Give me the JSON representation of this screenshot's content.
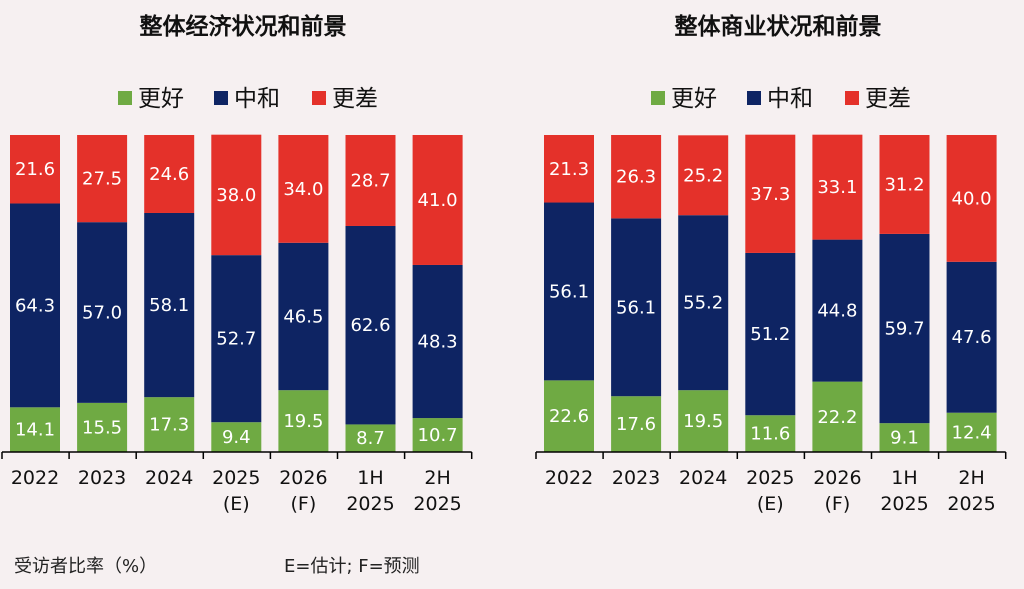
{
  "colors": {
    "better": "#6faa43",
    "neutral": "#0e2463",
    "worse": "#e4312a",
    "background": "#f6f0f1"
  },
  "footnote": {
    "left": "受访者比率（%）",
    "right": "E=估计; F=预测"
  },
  "chart_data": [
    {
      "type": "bar",
      "stacked": true,
      "title": "整体经济状况和前景",
      "categories": [
        [
          "2022"
        ],
        [
          "2023"
        ],
        [
          "2024"
        ],
        [
          "2025",
          "(E)"
        ],
        [
          "2026",
          "(F)"
        ],
        [
          "1H",
          "2025"
        ],
        [
          "2H",
          "2025"
        ]
      ],
      "legend": {
        "placement": "top"
      },
      "series": [
        {
          "name": "更好",
          "key": "better",
          "values": [
            14.1,
            15.5,
            17.3,
            9.4,
            19.5,
            8.7,
            10.7
          ]
        },
        {
          "name": "中和",
          "key": "neutral",
          "values": [
            64.3,
            57.0,
            58.1,
            52.7,
            46.5,
            62.6,
            48.3
          ]
        },
        {
          "name": "更差",
          "key": "worse",
          "values": [
            21.6,
            27.5,
            24.6,
            38.0,
            34.0,
            28.7,
            41.0
          ]
        }
      ],
      "ylim": [
        0,
        100
      ]
    },
    {
      "type": "bar",
      "stacked": true,
      "title": "整体商业状况和前景",
      "categories": [
        [
          "2022"
        ],
        [
          "2023"
        ],
        [
          "2024"
        ],
        [
          "2025",
          "(E)"
        ],
        [
          "2026",
          "(F)"
        ],
        [
          "1H",
          "2025"
        ],
        [
          "2H",
          "2025"
        ]
      ],
      "legend": {
        "placement": "top"
      },
      "series": [
        {
          "name": "更好",
          "key": "better",
          "values": [
            22.6,
            17.6,
            19.5,
            11.6,
            22.2,
            9.1,
            12.4
          ]
        },
        {
          "name": "中和",
          "key": "neutral",
          "values": [
            56.1,
            56.1,
            55.2,
            51.2,
            44.8,
            59.7,
            47.6
          ]
        },
        {
          "name": "更差",
          "key": "worse",
          "values": [
            21.3,
            26.3,
            25.2,
            37.3,
            33.1,
            31.2,
            40.0
          ]
        }
      ],
      "ylim": [
        0,
        100
      ]
    }
  ]
}
